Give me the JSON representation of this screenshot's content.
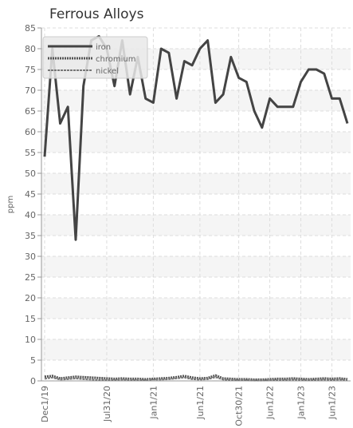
{
  "chart_data": {
    "type": "line",
    "title": "Ferrous Alloys",
    "xlabel": "",
    "ylabel": "ppm",
    "ylim": [
      0,
      85
    ],
    "y_ticks": [
      0,
      5,
      10,
      15,
      20,
      25,
      30,
      35,
      40,
      45,
      50,
      55,
      60,
      65,
      70,
      75,
      80,
      85
    ],
    "x_tick_labels": [
      "Dec1/19",
      "Jul31/20",
      "Jan1/21",
      "Jun1/21",
      "Oct30/21",
      "Jun1/22",
      "Jan1/23",
      "Jun1/23"
    ],
    "grid": true,
    "legend_position": "top-left",
    "series": [
      {
        "name": "iron",
        "color": "#444444",
        "values": [
          54,
          80,
          62,
          66,
          34,
          71,
          82,
          83,
          80,
          71,
          82,
          69,
          78,
          68,
          67,
          80,
          79,
          68,
          77,
          76,
          80,
          82,
          67,
          69,
          78,
          73,
          72,
          65,
          61,
          68,
          66,
          66,
          66,
          72,
          75,
          75,
          74,
          68,
          68,
          62
        ]
      },
      {
        "name": "chromium",
        "color": "#555555",
        "values": [
          1.0,
          1.2,
          0.6,
          0.8,
          1.0,
          0.9,
          0.8,
          0.7,
          0.6,
          0.5,
          0.6,
          0.5,
          0.5,
          0.4,
          0.5,
          0.6,
          0.7,
          0.9,
          1.2,
          0.8,
          0.6,
          0.7,
          1.3,
          0.6,
          0.5,
          0.4,
          0.4,
          0.3,
          0.3,
          0.4,
          0.5,
          0.5,
          0.6,
          0.5,
          0.4,
          0.5,
          0.6,
          0.5,
          0.6,
          0.4
        ]
      },
      {
        "name": "nickel",
        "color": "#777777",
        "values": [
          0.5,
          0.8,
          0.3,
          0.4,
          0.6,
          0.4,
          0.3,
          0.2,
          0.2,
          0.2,
          0.3,
          0.2,
          0.2,
          0.2,
          0.3,
          0.3,
          0.4,
          0.6,
          0.8,
          0.4,
          0.3,
          0.4,
          0.9,
          0.3,
          0.2,
          0.2,
          0.2,
          0.1,
          0.1,
          0.2,
          0.2,
          0.2,
          0.3,
          0.2,
          0.2,
          0.2,
          0.3,
          0.2,
          0.3,
          0.2
        ]
      }
    ]
  }
}
